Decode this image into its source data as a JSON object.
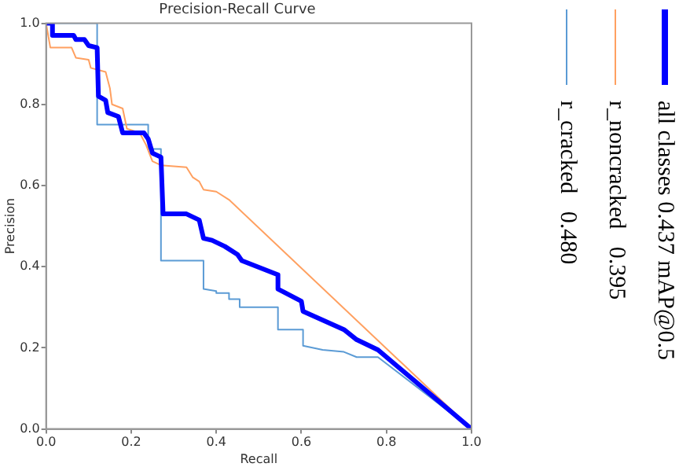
{
  "chart_data": {
    "type": "line",
    "title": "Precision-Recall Curve",
    "xlabel": "Recall",
    "ylabel": "Precision",
    "xlim": [
      0,
      1
    ],
    "ylim": [
      0,
      1
    ],
    "xticks": [
      {
        "value": 0,
        "label": "0.0"
      },
      0.2,
      0.4,
      0.6,
      0.8,
      {
        "value": 1,
        "label": "1.0"
      }
    ],
    "yticks": [
      {
        "value": 0,
        "label": "0.0"
      },
      0.2,
      0.4,
      0.6,
      0.8,
      {
        "value": 1,
        "label": "1.0"
      }
    ],
    "grid": false,
    "legend": "right",
    "marker": "none",
    "line_style": "solid",
    "series": [
      {
        "name": "all classes 0.437 mAP@0.5",
        "color": "#0000ff",
        "x": [
          0,
          0.015,
          0.015,
          0.065,
          0.07,
          0.09,
          0.1,
          0.12,
          0.123,
          0.14,
          0.145,
          0.17,
          0.18,
          0.23,
          0.24,
          0.25,
          0.27,
          0.275,
          0.33,
          0.36,
          0.37,
          0.39,
          0.42,
          0.45,
          0.46,
          0.545,
          0.545,
          0.6,
          0.604,
          0.7,
          0.73,
          0.78,
          1.0
        ],
        "values": [
          1.0,
          1.0,
          0.97,
          0.97,
          0.96,
          0.96,
          0.945,
          0.94,
          0.82,
          0.81,
          0.78,
          0.77,
          0.73,
          0.73,
          0.715,
          0.68,
          0.67,
          0.53,
          0.53,
          0.515,
          0.47,
          0.465,
          0.45,
          0.43,
          0.415,
          0.38,
          0.345,
          0.315,
          0.29,
          0.245,
          0.22,
          0.195,
          0.0
        ]
      },
      {
        "name": "r_noncracked   0.395",
        "color": "#ffa060",
        "x": [
          0,
          0.01,
          0.06,
          0.07,
          0.1,
          0.105,
          0.14,
          0.15,
          0.155,
          0.18,
          0.19,
          0.22,
          0.235,
          0.25,
          0.27,
          0.33,
          0.345,
          0.36,
          0.37,
          0.4,
          0.43,
          1.0
        ],
        "values": [
          1.0,
          0.94,
          0.94,
          0.915,
          0.91,
          0.89,
          0.88,
          0.84,
          0.8,
          0.79,
          0.74,
          0.73,
          0.7,
          0.66,
          0.65,
          0.645,
          0.62,
          0.61,
          0.59,
          0.585,
          0.565,
          0.0
        ]
      },
      {
        "name": "r_cracked   0.480",
        "color": "#5b9bd5",
        "x": [
          0,
          0.12,
          0.12,
          0.24,
          0.24,
          0.27,
          0.27,
          0.37,
          0.37,
          0.4,
          0.4,
          0.43,
          0.43,
          0.455,
          0.455,
          0.545,
          0.545,
          0.604,
          0.604,
          0.65,
          0.7,
          0.73,
          0.78,
          1.0
        ],
        "values": [
          1.0,
          1.0,
          0.75,
          0.75,
          0.69,
          0.69,
          0.415,
          0.415,
          0.345,
          0.34,
          0.335,
          0.335,
          0.32,
          0.32,
          0.3,
          0.3,
          0.245,
          0.245,
          0.205,
          0.195,
          0.19,
          0.177,
          0.177,
          0.0
        ]
      }
    ]
  }
}
